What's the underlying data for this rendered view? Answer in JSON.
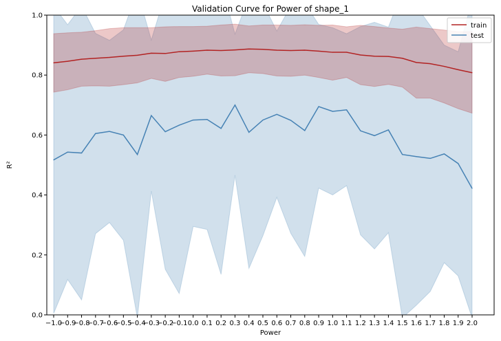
{
  "chart_data": {
    "type": "line",
    "title": "Validation Curve for Power of shape_1",
    "xlabel": "Power",
    "ylabel": "R²",
    "ylim": [
      0,
      1
    ],
    "yticks": [
      "0.0",
      "0.2",
      "0.4",
      "0.6",
      "0.8",
      "1.0"
    ],
    "x": [
      "−1.0",
      "−0.9",
      "−0.8",
      "−0.7",
      "−0.6",
      "−0.5",
      "−0.4",
      "−0.3",
      "−0.2",
      "−0.1",
      "0.0",
      "0.1",
      "0.2",
      "0.3",
      "0.4",
      "0.5",
      "0.6",
      "0.7",
      "0.8",
      "0.9",
      "1.0",
      "1.1",
      "1.2",
      "1.3",
      "1.4",
      "1.5",
      "1.6",
      "1.7",
      "1.8",
      "1.9",
      "2.0"
    ],
    "legend_position": "top-right",
    "series": [
      {
        "name": "train",
        "color": "#b22222",
        "values": [
          0.841,
          0.846,
          0.853,
          0.856,
          0.859,
          0.863,
          0.866,
          0.873,
          0.872,
          0.878,
          0.88,
          0.883,
          0.882,
          0.884,
          0.887,
          0.886,
          0.883,
          0.882,
          0.883,
          0.88,
          0.876,
          0.876,
          0.867,
          0.863,
          0.862,
          0.856,
          0.842,
          0.838,
          0.829,
          0.818,
          0.808
        ],
        "upper": [
          0.938,
          0.941,
          0.943,
          0.948,
          0.955,
          0.958,
          0.958,
          0.958,
          0.961,
          0.962,
          0.962,
          0.963,
          0.967,
          0.97,
          0.964,
          0.967,
          0.967,
          0.966,
          0.968,
          0.966,
          0.967,
          0.961,
          0.966,
          0.962,
          0.957,
          0.953,
          0.96,
          0.955,
          0.95,
          0.945,
          0.945
        ],
        "lower": [
          0.743,
          0.751,
          0.763,
          0.764,
          0.763,
          0.768,
          0.774,
          0.789,
          0.779,
          0.792,
          0.796,
          0.803,
          0.797,
          0.798,
          0.808,
          0.805,
          0.797,
          0.796,
          0.8,
          0.792,
          0.783,
          0.792,
          0.768,
          0.762,
          0.769,
          0.76,
          0.723,
          0.723,
          0.707,
          0.688,
          0.673
        ]
      },
      {
        "name": "test",
        "color": "#4682b4",
        "values": [
          0.517,
          0.543,
          0.54,
          0.605,
          0.612,
          0.6,
          0.535,
          0.665,
          0.611,
          0.633,
          0.65,
          0.652,
          0.622,
          0.7,
          0.609,
          0.65,
          0.669,
          0.649,
          0.615,
          0.695,
          0.679,
          0.684,
          0.614,
          0.598,
          0.617,
          0.535,
          0.528,
          0.522,
          0.537,
          0.505,
          0.422
        ],
        "upper": [
          1.03,
          0.968,
          1.03,
          0.939,
          0.916,
          0.951,
          1.08,
          0.917,
          1.07,
          1.0,
          1.01,
          1.01,
          1.11,
          0.937,
          1.06,
          1.04,
          0.947,
          1.03,
          1.04,
          0.969,
          0.958,
          0.938,
          0.962,
          0.976,
          0.96,
          1.08,
          1.03,
          0.965,
          0.9,
          0.878,
          1.05
        ],
        "lower": [
          0.005,
          0.118,
          0.05,
          0.271,
          0.308,
          0.249,
          -0.01,
          0.413,
          0.152,
          0.071,
          0.295,
          0.285,
          0.135,
          0.466,
          0.155,
          0.264,
          0.392,
          0.272,
          0.195,
          0.423,
          0.4,
          0.431,
          0.267,
          0.22,
          0.274,
          -0.01,
          0.032,
          0.078,
          0.174,
          0.13,
          -0.01
        ]
      }
    ]
  }
}
